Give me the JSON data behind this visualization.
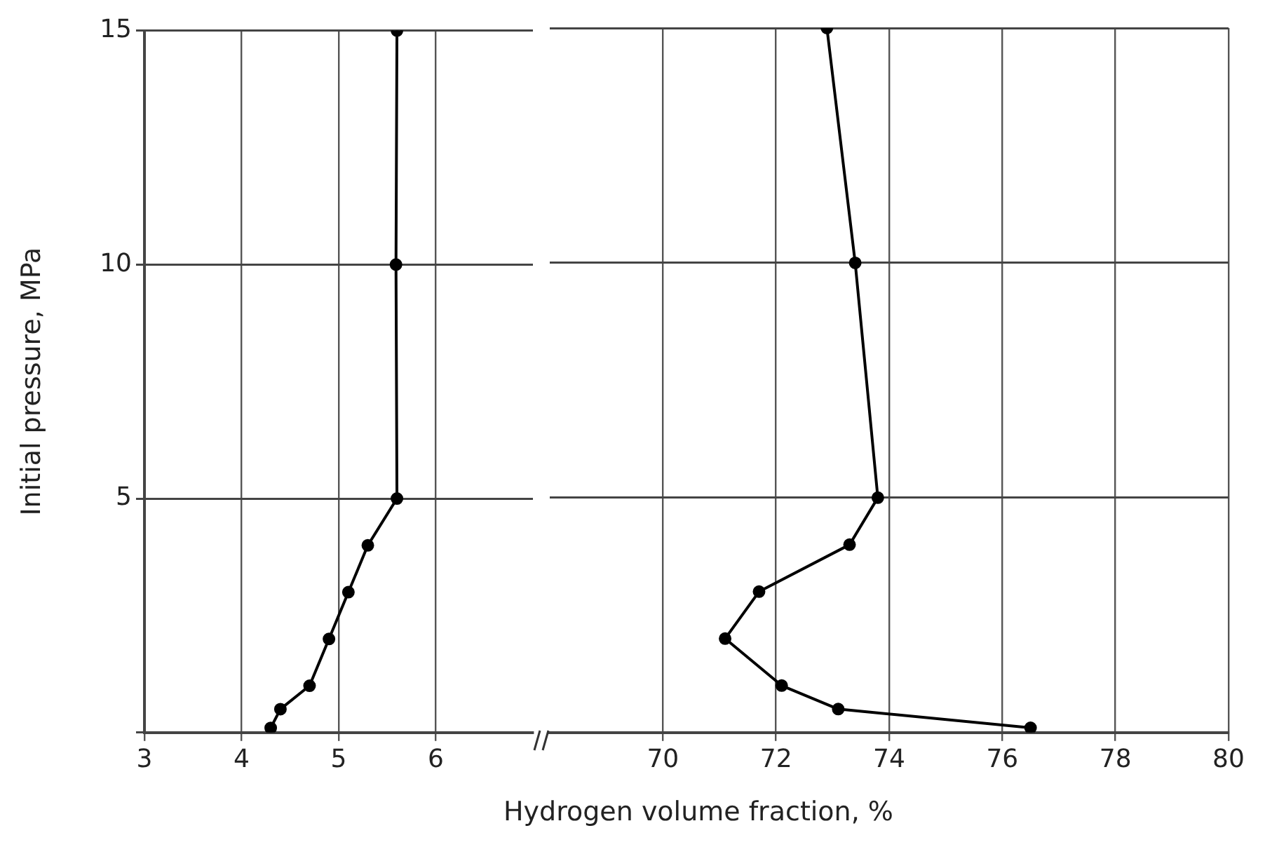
{
  "chart_data": [
    {
      "type": "line",
      "xlabel": "Hydrogen volume fraction, %",
      "ylabel": "Initial pressure, MPa",
      "xlim": [
        3,
        7
      ],
      "xticks": [
        3,
        4,
        5,
        6
      ],
      "ylim": [
        0,
        15
      ],
      "yticks": [
        {
          "value": 0,
          "label": null
        },
        5,
        10,
        15
      ],
      "grid": true,
      "marker": "circle",
      "line_style": "solid",
      "series": [
        {
          "color": "#000000",
          "x": [
            5.6,
            5.59,
            5.6,
            5.3,
            5.1,
            4.9,
            4.7,
            4.4,
            4.3
          ],
          "values": [
            15,
            10,
            5,
            4,
            3,
            2,
            1,
            0.5,
            0.1
          ]
        }
      ]
    },
    {
      "type": "line",
      "xlim": [
        68,
        80
      ],
      "xticks": [
        70,
        72,
        74,
        76,
        78,
        80
      ],
      "ylim": [
        0,
        15
      ],
      "yticks": [
        {
          "value": 0,
          "label": null
        },
        5,
        10,
        15
      ],
      "grid": true,
      "marker": "circle",
      "line_style": "solid",
      "tick_labels": "x",
      "series": [
        {
          "color": "#000000",
          "x": [
            72.9,
            73.4,
            73.8,
            73.3,
            71.7,
            71.1,
            72.1,
            73.1,
            76.5
          ],
          "values": [
            15,
            10,
            5,
            4,
            3,
            2,
            1,
            0.5,
            0.1
          ]
        }
      ]
    }
  ]
}
